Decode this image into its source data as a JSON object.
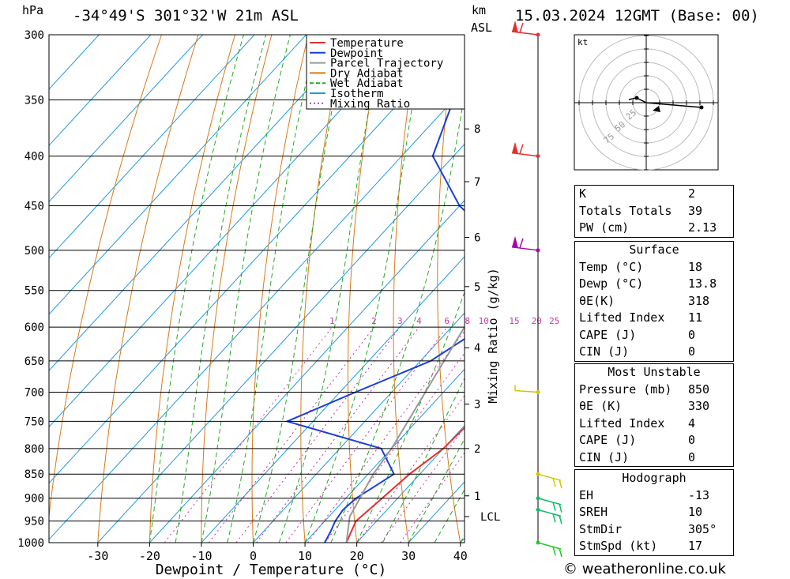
{
  "header": {
    "left_unit": "hPa",
    "location": "-34°49'S 301°32'W 21m ASL",
    "km_label": "km",
    "asl_label": "ASL",
    "datetime": "15.03.2024 12GMT (Base: 00)"
  },
  "chart_data": {
    "type": "line",
    "title": "-34°49'S 301°32'W 21m ASL",
    "xlabel": "Dewpoint / Temperature (°C)",
    "ylabel": "hPa",
    "xlim": [
      -40,
      40
    ],
    "ylim": [
      1000,
      300
    ],
    "x_ticks": [
      "-30",
      "-20",
      "-10",
      "0",
      "10",
      "20",
      "30",
      "40"
    ],
    "pressure_levels": [
      "300",
      "350",
      "400",
      "450",
      "500",
      "550",
      "600",
      "650",
      "700",
      "750",
      "800",
      "850",
      "900",
      "950",
      "1000"
    ],
    "km_ticks": [
      "8",
      "7",
      "6",
      "5",
      "4",
      "3",
      "2",
      "1",
      "LCL"
    ],
    "km_pressures": [
      375,
      425,
      485,
      545,
      630,
      720,
      800,
      895,
      940
    ],
    "right_axis_label": "Mixing Ratio (g/kg)",
    "mixing_ratio_labels": [
      "1",
      "2",
      "3",
      "4",
      "6",
      "8",
      "10",
      "15",
      "20",
      "25"
    ],
    "mixing_ratio_values": [
      1,
      2,
      3,
      4,
      6,
      8,
      10,
      15,
      20,
      25
    ],
    "legend": {
      "position": "top-right",
      "entries": [
        "Temperature",
        "Dewpoint",
        "Parcel Trajectory",
        "Dry Adiabat",
        "Wet Adiabat",
        "Isotherm",
        "Mixing Ratio"
      ],
      "colors": [
        "#e53030",
        "#1a3fd6",
        "#999999",
        "#d87a1a",
        "#22aa22",
        "#2299dd",
        "#cc33aa"
      ]
    },
    "series": [
      {
        "name": "Temperature",
        "color": "#e53030",
        "points": [
          [
            1000,
            18
          ],
          [
            975,
            17
          ],
          [
            950,
            16
          ],
          [
            925,
            16.5
          ],
          [
            900,
            17
          ],
          [
            850,
            18
          ],
          [
            800,
            20
          ],
          [
            750,
            20.5
          ],
          [
            700,
            18
          ],
          [
            650,
            15
          ],
          [
            600,
            13
          ],
          [
            550,
            11
          ],
          [
            500,
            9.5
          ],
          [
            450,
            7
          ],
          [
            400,
            6
          ],
          [
            350,
            3
          ],
          [
            300,
            -2
          ]
        ]
      },
      {
        "name": "Dewpoint",
        "color": "#1a3fd6",
        "points": [
          [
            1000,
            13.8
          ],
          [
            975,
            13
          ],
          [
            950,
            12
          ],
          [
            925,
            11.5
          ],
          [
            900,
            12
          ],
          [
            850,
            15
          ],
          [
            800,
            8
          ],
          [
            750,
            -15
          ],
          [
            700,
            -7
          ],
          [
            650,
            2
          ],
          [
            600,
            6
          ],
          [
            550,
            0
          ],
          [
            500,
            -3
          ],
          [
            450,
            -20
          ],
          [
            400,
            -34
          ],
          [
            350,
            -40
          ],
          [
            300,
            -48
          ]
        ]
      },
      {
        "name": "Parcel Trajectory",
        "color": "#999999",
        "points": [
          [
            1000,
            18
          ],
          [
            940,
            14
          ],
          [
            850,
            11
          ],
          [
            800,
            10
          ],
          [
            700,
            6.5
          ],
          [
            600,
            2.5
          ],
          [
            500,
            -5
          ],
          [
            450,
            -10
          ],
          [
            400,
            -17
          ],
          [
            350,
            -25
          ],
          [
            300,
            -37
          ]
        ]
      }
    ],
    "wind_barbs": [
      {
        "p": 300,
        "color": "#e53030"
      },
      {
        "p": 400,
        "color": "#e53030"
      },
      {
        "p": 500,
        "color": "#aa00aa"
      },
      {
        "p": 700,
        "color": "#d4c400"
      },
      {
        "p": 850,
        "color": "#d4c400"
      },
      {
        "p": 900,
        "color": "#11bb66"
      },
      {
        "p": 925,
        "color": "#11bb66"
      },
      {
        "p": 1000,
        "color": "#22cc22"
      }
    ],
    "hodograph": {
      "unit": "kt",
      "ring_labels": [
        "25",
        "50",
        "75"
      ]
    }
  },
  "indices": {
    "rows": [
      {
        "label": "K",
        "value": "2"
      },
      {
        "label": "Totals Totals",
        "value": "39"
      },
      {
        "label": "PW (cm)",
        "value": "2.13"
      }
    ]
  },
  "surface": {
    "title": "Surface",
    "rows": [
      {
        "label": "Temp (°C)",
        "value": "18"
      },
      {
        "label": "Dewp (°C)",
        "value": "13.8"
      },
      {
        "label": "θE(K)",
        "value": "318"
      },
      {
        "label": "Lifted Index",
        "value": "11"
      },
      {
        "label": "CAPE (J)",
        "value": "0"
      },
      {
        "label": "CIN (J)",
        "value": "0"
      }
    ]
  },
  "most_unstable": {
    "title": "Most Unstable",
    "rows": [
      {
        "label": "Pressure (mb)",
        "value": "850"
      },
      {
        "label": "θE (K)",
        "value": "330"
      },
      {
        "label": "Lifted Index",
        "value": "4"
      },
      {
        "label": "CAPE (J)",
        "value": "0"
      },
      {
        "label": "CIN (J)",
        "value": "0"
      }
    ]
  },
  "hodograph_table": {
    "title": "Hodograph",
    "rows": [
      {
        "label": "EH",
        "value": "-13"
      },
      {
        "label": "SREH",
        "value": "10"
      },
      {
        "label": "StmDir",
        "value": "305°"
      },
      {
        "label": "StmSpd (kt)",
        "value": "17"
      }
    ]
  },
  "footer": {
    "credit": "© weatheronline.co.uk"
  }
}
